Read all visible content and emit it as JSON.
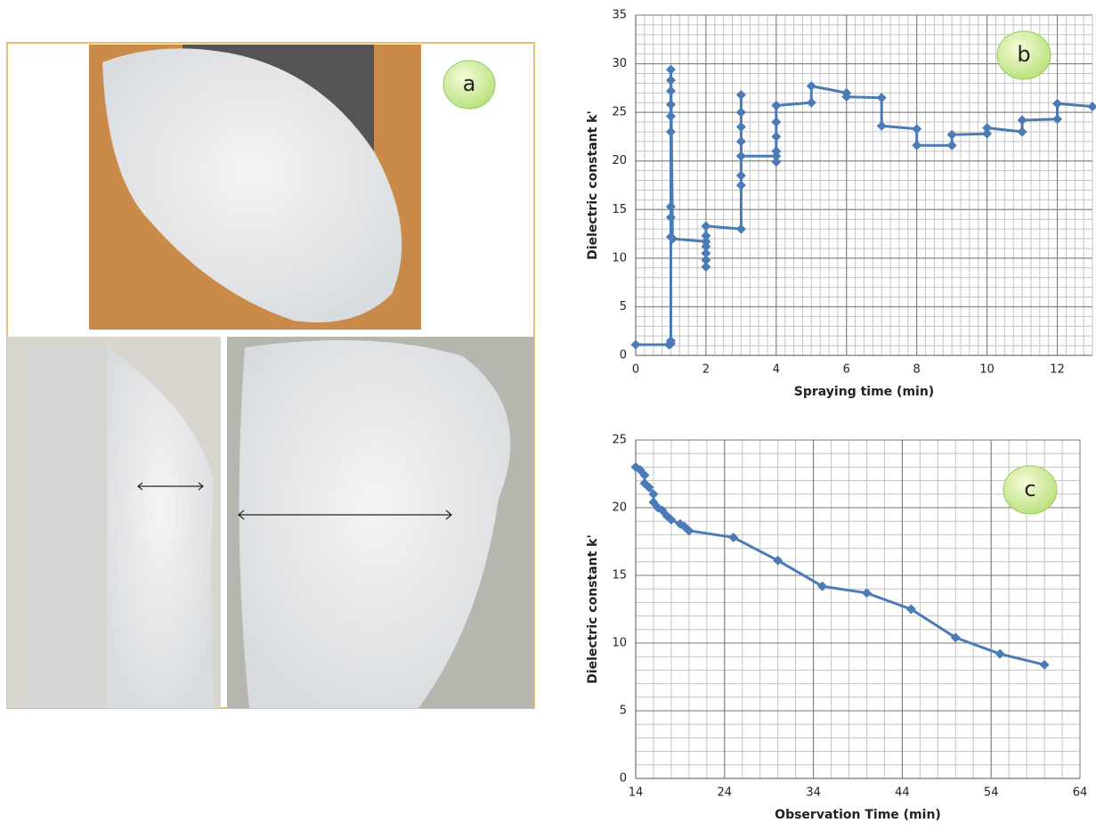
{
  "figure": {
    "panel_label": "a"
  },
  "chart_data": [
    {
      "type": "line",
      "panel_label": "b",
      "xlabel": "Spraying time (min)",
      "ylabel": "Dielectric constant k'",
      "color": "#4a7bb7",
      "marker": "diamond",
      "grid": true,
      "minor_grid": {
        "x": 0.25,
        "y": 1
      },
      "xlim": [
        0,
        13
      ],
      "xticks": [
        0,
        2,
        4,
        6,
        8,
        10,
        12
      ],
      "ylim": [
        0,
        35
      ],
      "yticks": [
        0,
        5,
        10,
        15,
        20,
        25,
        30,
        35
      ],
      "x": [
        0,
        0.95,
        1,
        1,
        1,
        1,
        1,
        1,
        1,
        1,
        1,
        1,
        1,
        1.05,
        2,
        2,
        2,
        2,
        2,
        2,
        2,
        3,
        3,
        3,
        3,
        3,
        3,
        3,
        3,
        3,
        4,
        4,
        4,
        4,
        4,
        4,
        5,
        5,
        6,
        6,
        7,
        7,
        8,
        8,
        9,
        9,
        10,
        10,
        11,
        11,
        12,
        12,
        13
      ],
      "values": [
        1.1,
        1.1,
        1.5,
        1.2,
        12.2,
        14.2,
        15.3,
        23,
        24.6,
        25.8,
        27.2,
        28.3,
        29.4,
        12,
        11.7,
        9.1,
        9.8,
        10.5,
        11.2,
        12.3,
        13.3,
        13,
        17.5,
        18.5,
        20.5,
        22,
        23.5,
        25,
        26.8,
        20.5,
        20.5,
        19.9,
        21,
        22.5,
        24,
        25.7,
        26,
        27.7,
        27,
        26.6,
        26.5,
        23.6,
        23.3,
        21.6,
        21.6,
        22.7,
        22.8,
        23.4,
        23,
        24.2,
        24.3,
        25.9,
        25.6
      ]
    },
    {
      "type": "line",
      "panel_label": "c",
      "xlabel": "Observation Time (min)",
      "ylabel": "Dielectric constant k'",
      "color": "#4a7bb7",
      "marker": "diamond",
      "grid": true,
      "minor_grid": {
        "x": 2,
        "y": 1
      },
      "xlim": [
        14,
        64
      ],
      "xticks": [
        14,
        24,
        34,
        44,
        54,
        64
      ],
      "ylim": [
        0,
        25
      ],
      "yticks": [
        0,
        5,
        10,
        15,
        20,
        25
      ],
      "x": [
        14,
        14.5,
        15,
        15,
        15.5,
        16,
        16,
        16.5,
        17,
        17.5,
        18,
        19,
        19.5,
        20,
        25,
        30,
        35,
        40,
        45,
        50,
        55,
        60
      ],
      "values": [
        23,
        22.8,
        22.4,
        21.8,
        21.5,
        21,
        20.4,
        20,
        19.8,
        19.4,
        19.1,
        18.8,
        18.6,
        18.3,
        17.8,
        16.1,
        14.2,
        13.7,
        12.5,
        10.4,
        9.2,
        8.4
      ]
    }
  ]
}
